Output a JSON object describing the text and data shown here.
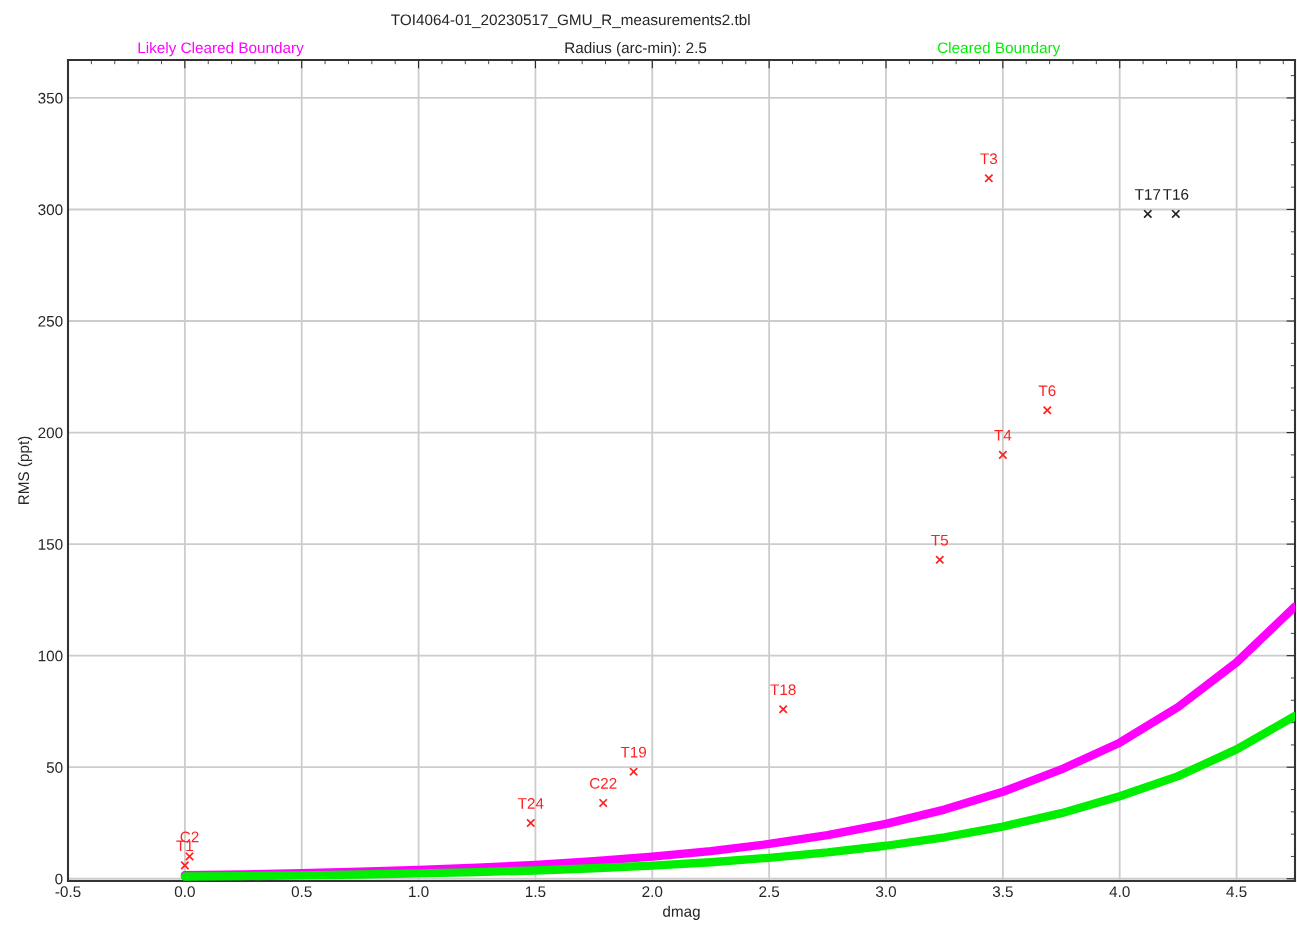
{
  "chart_data": {
    "type": "scatter",
    "title": "TOI4064-01_20230517_GMU_R_measurements2.tbl",
    "subtitle": "Radius (arc-min): 2.5",
    "xlabel": "dmag",
    "ylabel": "RMS (ppt)",
    "xlim": [
      -0.5,
      4.75
    ],
    "ylim": [
      -1,
      367
    ],
    "xticks": [
      -0.5,
      {
        "value": 0,
        "label": "0.0"
      },
      0.5,
      {
        "value": 1,
        "label": "1.0"
      },
      1.5,
      {
        "value": 2,
        "label": "2.0"
      },
      2.5,
      {
        "value": 3,
        "label": "3.0"
      },
      3.5,
      {
        "value": 4,
        "label": "4.0"
      },
      4.5
    ],
    "yticks": [
      0,
      50,
      100,
      150,
      200,
      250,
      300,
      350
    ],
    "grid": true,
    "legend": false,
    "series": [
      {
        "type": "line",
        "name": "Likely Cleared Boundary",
        "color": "#ff00ff",
        "x": [
          0,
          0.25,
          0.5,
          0.75,
          1,
          1.25,
          1.5,
          1.75,
          2,
          2.25,
          2.5,
          2.75,
          3,
          3.25,
          3.5,
          3.75,
          4,
          4.25,
          4.5,
          4.75
        ],
        "values": [
          1.6,
          2.0,
          2.5,
          3.2,
          4.0,
          5.0,
          6.2,
          7.9,
          9.9,
          12.4,
          15.6,
          19.6,
          24.6,
          31,
          39,
          49,
          61,
          77,
          97,
          122
        ]
      },
      {
        "type": "line",
        "name": "Cleared Boundary",
        "color": "#00ee00",
        "x": [
          0,
          0.25,
          0.5,
          0.75,
          1,
          1.25,
          1.5,
          1.75,
          2,
          2.25,
          2.5,
          2.75,
          3,
          3.25,
          3.5,
          3.75,
          4,
          4.25,
          4.5,
          4.75
        ],
        "values": [
          1.0,
          1.2,
          1.5,
          1.9,
          2.4,
          3.0,
          3.7,
          4.7,
          5.9,
          7.4,
          9.4,
          11.8,
          14.8,
          18.6,
          23.4,
          29.4,
          37,
          46,
          58,
          73
        ]
      },
      {
        "marker": "cross",
        "color": "#ff2020",
        "x": [
          0.0,
          0.02,
          1.48,
          1.79,
          1.92,
          2.56,
          3.23,
          3.5,
          3.69,
          3.44
        ],
        "values": [
          6,
          10,
          25,
          34,
          48,
          76,
          143,
          190,
          210,
          314
        ],
        "value_labels": [
          "T1",
          "C2",
          "T24",
          "C22",
          "T19",
          "T18",
          "T5",
          "T4",
          "T6",
          "T3"
        ]
      },
      {
        "marker": "cross",
        "color": "#202020",
        "x": [
          4.12,
          4.24
        ],
        "values": [
          298,
          298
        ],
        "value_labels": [
          "T17",
          "T16"
        ]
      }
    ]
  }
}
